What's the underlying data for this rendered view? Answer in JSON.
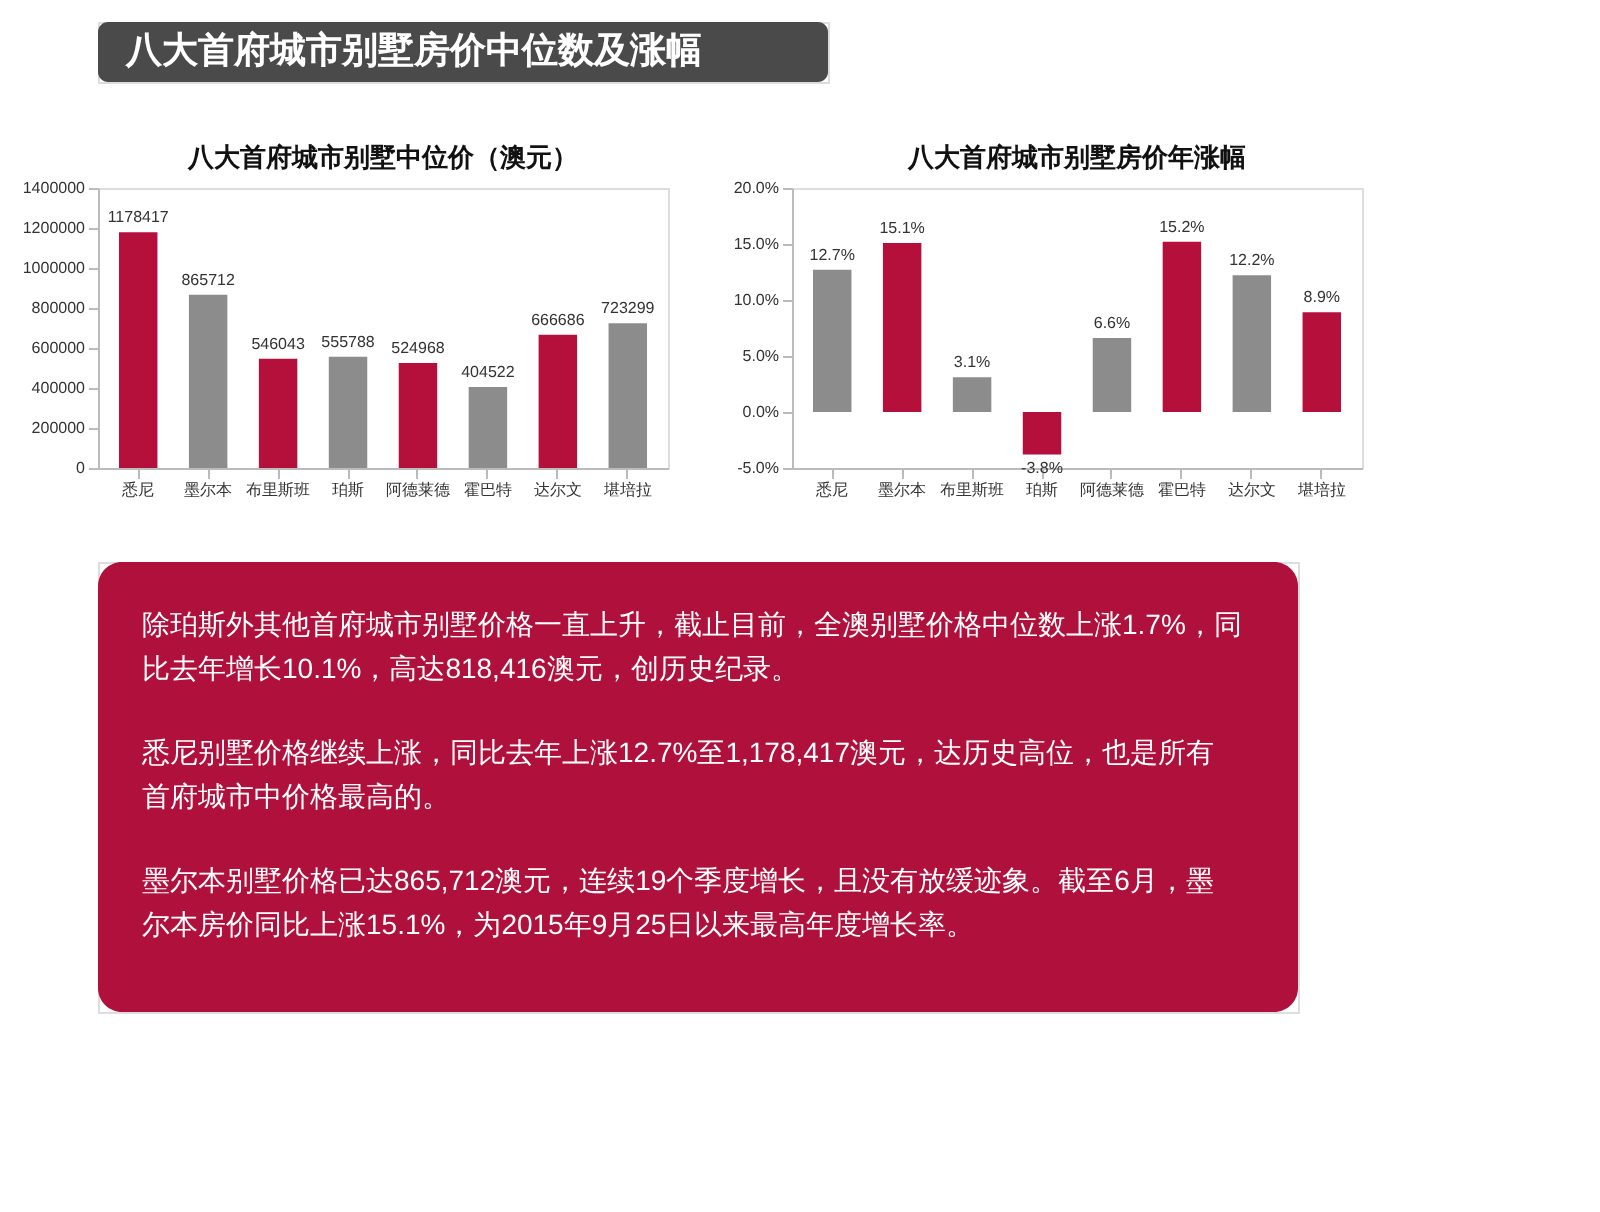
{
  "chart_data": [
    {
      "type": "other",
      "title": "八大首府城市别墅房价中位数及涨幅"
    },
    {
      "type": "bar",
      "title": "八大首府城市别墅中位价（澳元）",
      "categories": [
        "悉尼",
        "墨尔本",
        "布里斯班",
        "珀斯",
        "阿德莱德",
        "霍巴特",
        "达尔文",
        "堪培拉"
      ],
      "values": [
        1178417,
        865712,
        546043,
        555788,
        524968,
        404522,
        666686,
        723299
      ],
      "colors": [
        "#b5103c",
        "#8c8c8c",
        "#b5103c",
        "#8c8c8c",
        "#b5103c",
        "#8c8c8c",
        "#b5103c",
        "#8c8c8c"
      ],
      "ylim": [
        0,
        1400000
      ],
      "yticks": [
        0,
        200000,
        400000,
        600000,
        800000,
        1000000,
        1200000,
        1400000
      ],
      "data_labels": true,
      "grid": false
    },
    {
      "type": "bar",
      "title": "八大首府城市别墅房价年涨幅",
      "categories": [
        "悉尼",
        "墨尔本",
        "布里斯班",
        "珀斯",
        "阿德莱德",
        "霍巴特",
        "达尔文",
        "堪培拉"
      ],
      "values": [
        12.7,
        15.1,
        3.1,
        -3.8,
        6.6,
        15.2,
        12.2,
        8.9
      ],
      "value_labels": [
        "12.7%",
        "15.1%",
        "3.1%",
        "-3.8%",
        "6.6%",
        "15.2%",
        "12.2%",
        "8.9%"
      ],
      "colors": [
        "#8c8c8c",
        "#b5103c",
        "#8c8c8c",
        "#b5103c",
        "#8c8c8c",
        "#b5103c",
        "#8c8c8c",
        "#b5103c"
      ],
      "ylim": [
        -5,
        20
      ],
      "yticks": [
        {
          "value": -5,
          "label": "-5.0%"
        },
        {
          "value": 0,
          "label": "0.0%"
        },
        {
          "value": 5,
          "label": "5.0%"
        },
        {
          "value": 10,
          "label": "10.0%"
        },
        {
          "value": 15,
          "label": "15.0%"
        },
        {
          "value": 20,
          "label": "20.0%"
        }
      ],
      "grid": false
    },
    {
      "type": "other",
      "annotations": [
        "除珀斯外其他首府城市别墅价格一直上升，截止目前，全澳别墅价格中位数上涨1.7%，同比去年增长10.1%，高达818,416澳元，创历史纪录。",
        "悉尼别墅价格继续上涨，同比去年上涨12.7%至1,178,417澳元，达历史高位，也是所有首府城市中价格最高的。",
        "墨尔本别墅价格已达865,712澳元，连续19个季度增长，且没有放缓迹象。截至6月，墨尔本房价同比上涨15.1%，为2015年9月25日以来最高年度增长率。"
      ]
    }
  ]
}
